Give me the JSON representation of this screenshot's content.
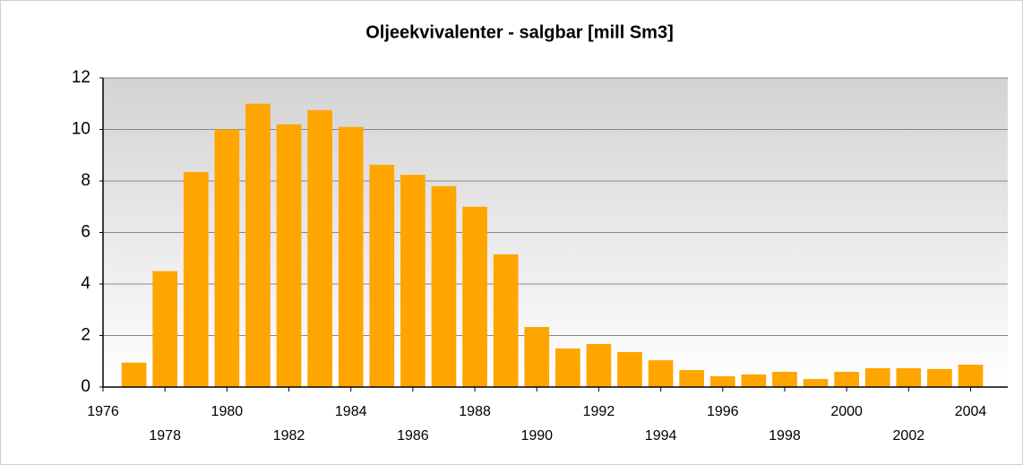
{
  "chart_data": {
    "type": "bar",
    "title": "Oljeekvivalenter - salgbar [mill Sm3]",
    "x": [
      1977,
      1978,
      1979,
      1980,
      1981,
      1982,
      1983,
      1984,
      1985,
      1986,
      1987,
      1988,
      1989,
      1990,
      1991,
      1992,
      1993,
      1994,
      1995,
      1996,
      1997,
      1998,
      1999,
      2000,
      2001,
      2002,
      2003,
      2004
    ],
    "values": [
      0.95,
      4.5,
      8.35,
      10.0,
      11.0,
      10.2,
      10.75,
      10.1,
      8.63,
      8.24,
      7.8,
      7.0,
      5.15,
      2.33,
      1.5,
      1.67,
      1.36,
      1.04,
      0.66,
      0.42,
      0.49,
      0.59,
      0.31,
      0.59,
      0.73,
      0.73,
      0.7,
      0.87
    ],
    "color": "#ffa500",
    "xlim": [
      1976,
      2005.2
    ],
    "xticks": [
      1976,
      1978,
      1980,
      1982,
      1984,
      1986,
      1988,
      1990,
      1992,
      1994,
      1996,
      1998,
      2000,
      2002,
      2004
    ],
    "ylim": [
      0,
      12
    ],
    "yticks": [
      0,
      2,
      4,
      6,
      8,
      10,
      12
    ],
    "grid": true
  }
}
